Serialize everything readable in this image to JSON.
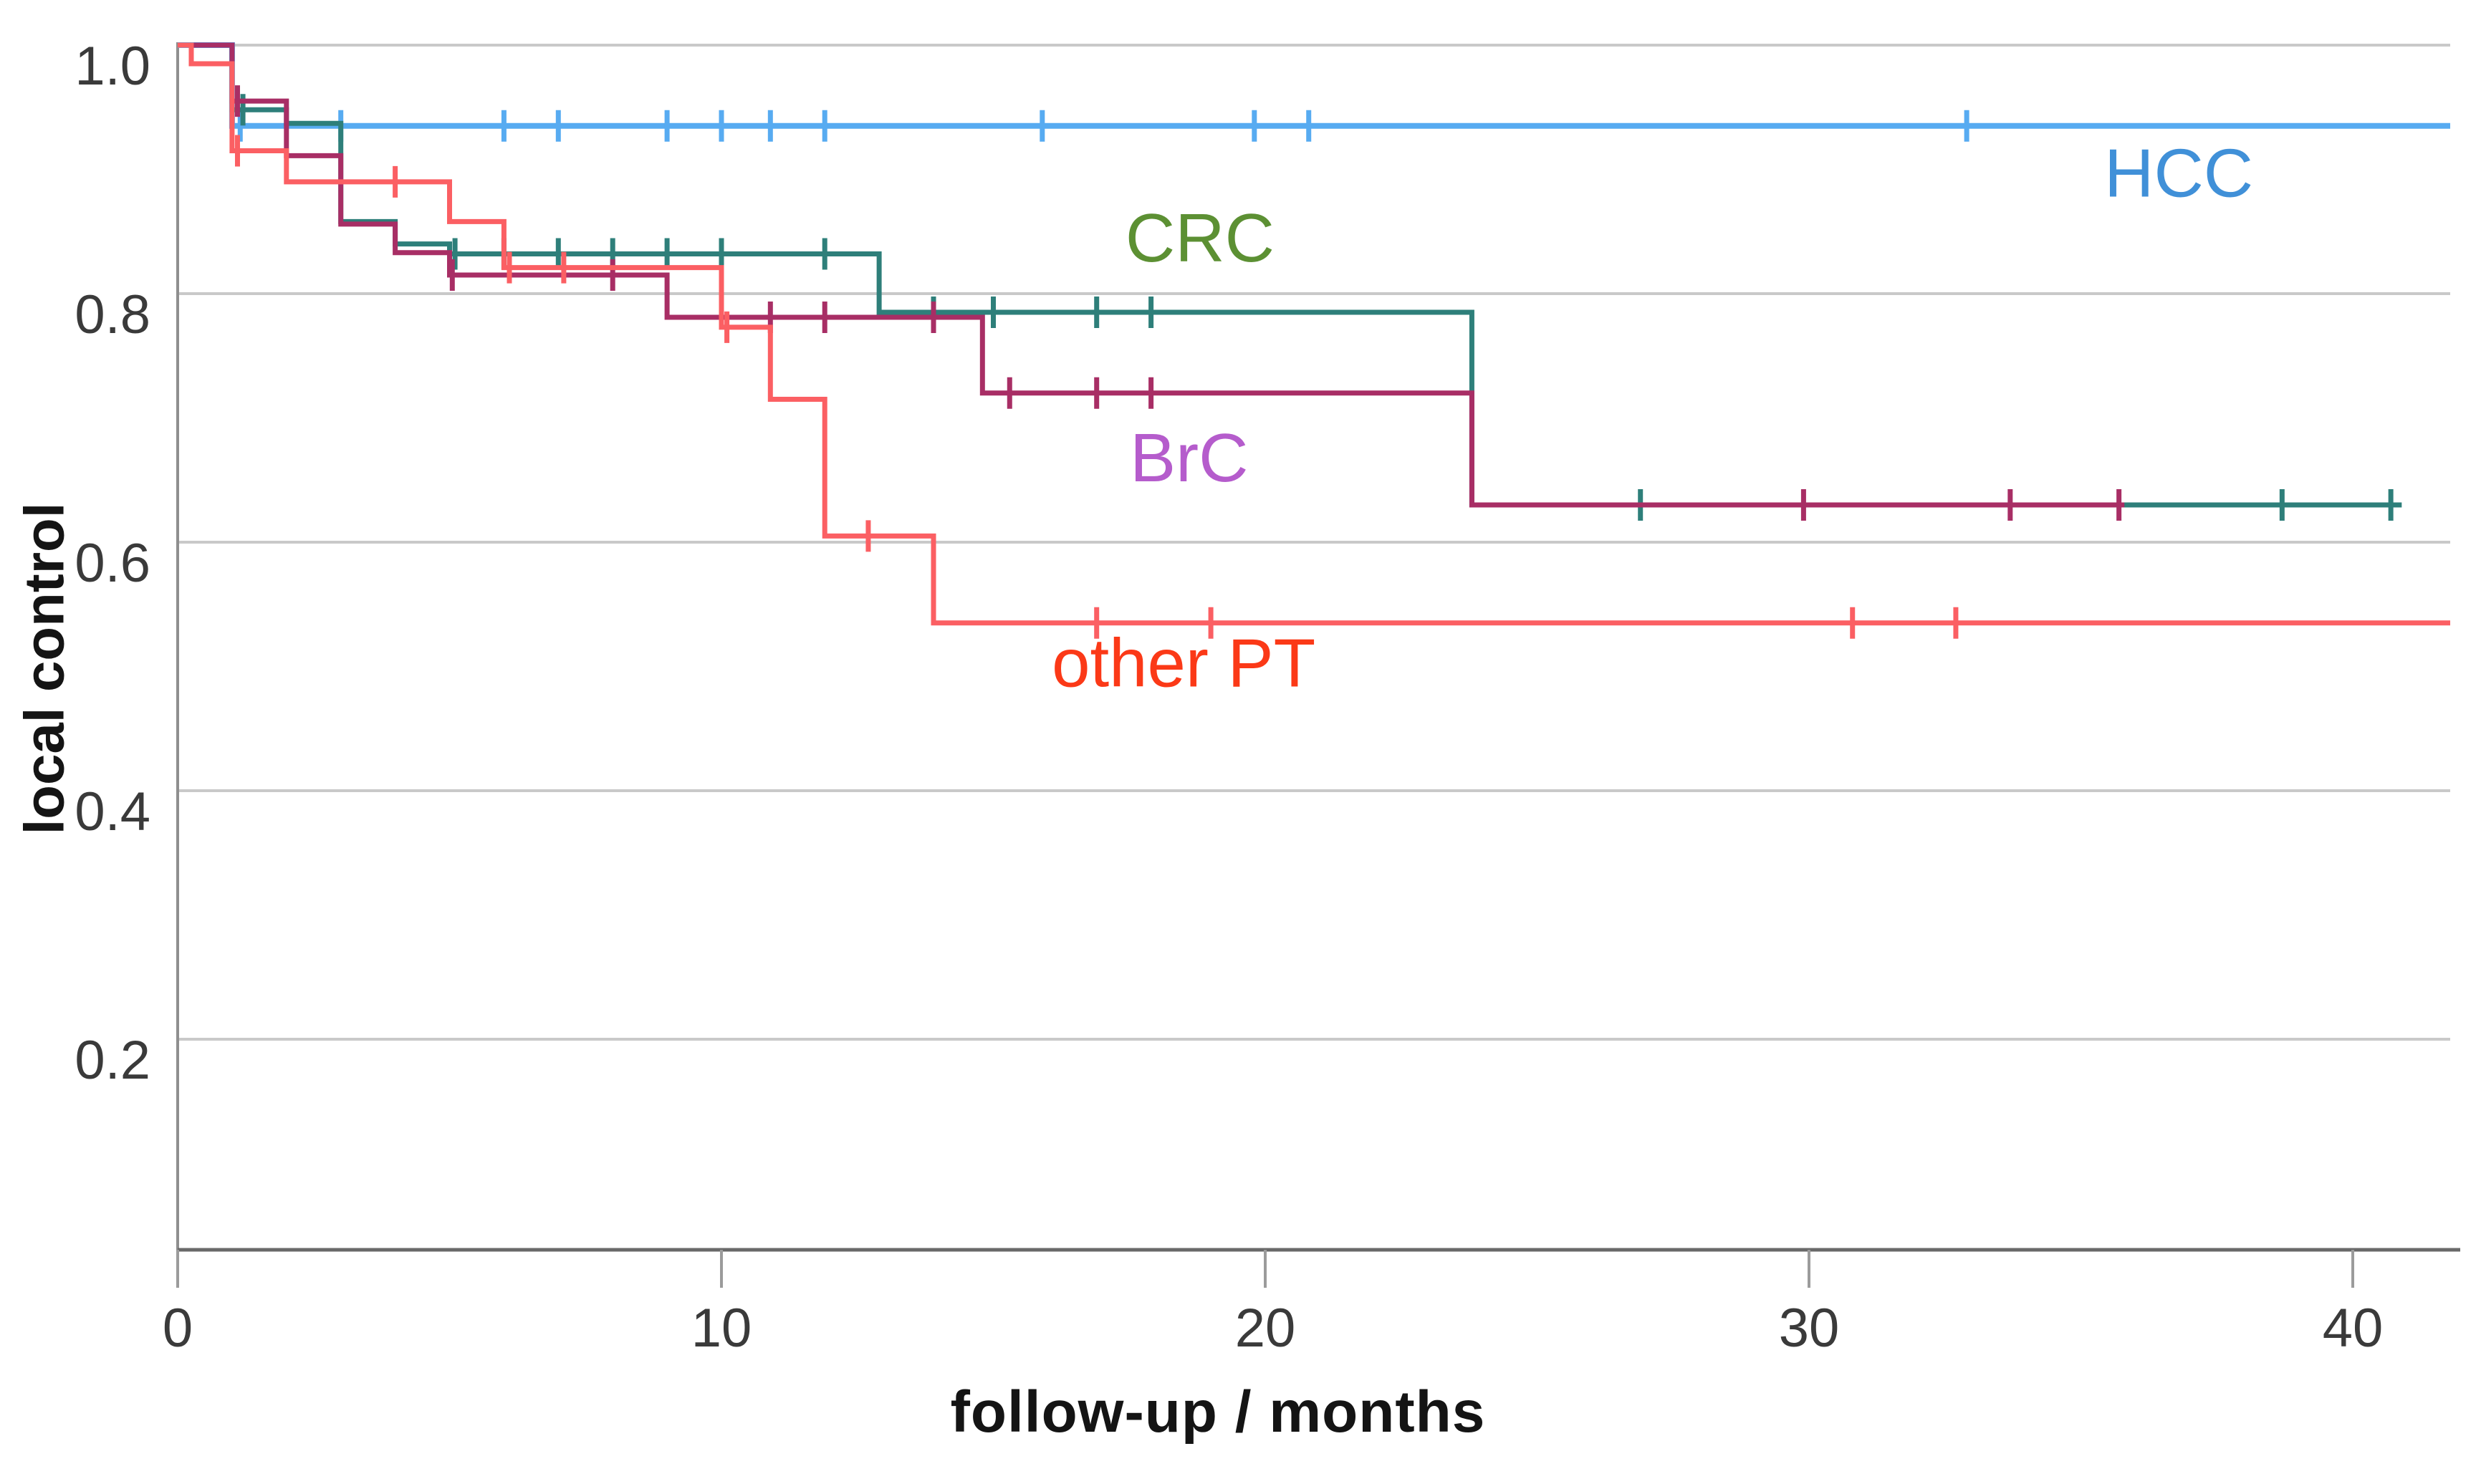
{
  "figure": {
    "x_axis_title": "follow-up / months",
    "y_axis_title": "local control"
  },
  "chart_data": {
    "type": "line",
    "subtype": "kaplan-meier-step-curves",
    "title": "",
    "xlabel": "follow-up / months",
    "ylabel": "local control",
    "xlim": [
      0,
      41.8
    ],
    "ylim": [
      0.03,
      1.02
    ],
    "x_ticks": [
      "0",
      "10",
      "20",
      "30",
      "40"
    ],
    "x_tick_values": [
      0,
      10,
      20,
      30,
      40
    ],
    "y_ticks": [
      "1.0",
      "0.8",
      "0.6",
      "0.4",
      "0.2"
    ],
    "y_tick_values": [
      1.0,
      0.8,
      0.6,
      0.4,
      0.2
    ],
    "grid": "horizontal",
    "legend_position": "inline-labels",
    "colors": {
      "grid_line": "#c9c9c9",
      "y_axis_line": "#8f8f8f",
      "x_axis_line": "#696969",
      "tick_mark": "#9b9b9b",
      "tick_label": "#3a3a3a"
    },
    "series": [
      {
        "name": "HCC",
        "label": {
          "text": "HCC",
          "x": 36.8,
          "y": 0.897
        },
        "line_color": "#57abf1",
        "label_color": "#4090d8",
        "end_t": 41.8,
        "steps": [
          [
            0,
            1.0
          ],
          [
            1,
            0.935
          ]
        ],
        "censors": [
          [
            1.15,
            0.935
          ],
          [
            3,
            0.935
          ],
          [
            6,
            0.935
          ],
          [
            7,
            0.935
          ],
          [
            9,
            0.935
          ],
          [
            10,
            0.935
          ],
          [
            10.9,
            0.935
          ],
          [
            11.9,
            0.935
          ],
          [
            15.9,
            0.935
          ],
          [
            19.8,
            0.935
          ],
          [
            20.8,
            0.935
          ],
          [
            32.9,
            0.935
          ]
        ]
      },
      {
        "name": "CRC",
        "label": {
          "text": "CRC",
          "x": 18.8,
          "y": 0.845
        },
        "line_color": "#2e7f7a",
        "label_color": "#5c9033",
        "end_t": 40.9,
        "steps": [
          [
            0,
            1.0
          ],
          [
            1,
            0.948
          ],
          [
            2,
            0.937
          ],
          [
            3,
            0.858
          ],
          [
            4,
            0.84
          ],
          [
            5,
            0.832
          ],
          [
            12.9,
            0.785
          ],
          [
            23.8,
            0.63
          ]
        ],
        "censors": [
          [
            1.2,
            0.948
          ],
          [
            5.1,
            0.832
          ],
          [
            6,
            0.832
          ],
          [
            7,
            0.832
          ],
          [
            8,
            0.832
          ],
          [
            9,
            0.832
          ],
          [
            10,
            0.832
          ],
          [
            11.9,
            0.832
          ],
          [
            13.9,
            0.785
          ],
          [
            15,
            0.785
          ],
          [
            16.9,
            0.785
          ],
          [
            17.9,
            0.785
          ],
          [
            26.9,
            0.63
          ],
          [
            38.7,
            0.63
          ],
          [
            40.7,
            0.63
          ]
        ]
      },
      {
        "name": "BrC",
        "label": {
          "text": "BrC",
          "x": 18.6,
          "y": 0.668
        },
        "line_color": "#a82e65",
        "label_color": "#b55ccc",
        "end_t": 35.8,
        "steps": [
          [
            0,
            1.0
          ],
          [
            1,
            0.955
          ],
          [
            2,
            0.911
          ],
          [
            3,
            0.856
          ],
          [
            4,
            0.833
          ],
          [
            5,
            0.815
          ],
          [
            9,
            0.781
          ],
          [
            14.8,
            0.72
          ],
          [
            23.8,
            0.63
          ]
        ],
        "censors": [
          [
            1.1,
            0.955
          ],
          [
            5.05,
            0.815
          ],
          [
            8,
            0.815
          ],
          [
            10.9,
            0.781
          ],
          [
            11.9,
            0.781
          ],
          [
            13.9,
            0.781
          ],
          [
            15.3,
            0.72
          ],
          [
            16.9,
            0.72
          ],
          [
            17.9,
            0.72
          ],
          [
            29.9,
            0.63
          ],
          [
            33.7,
            0.63
          ],
          [
            35.7,
            0.63
          ]
        ]
      },
      {
        "name": "other PT",
        "label": {
          "text": "other PT",
          "x": 18.5,
          "y": 0.503
        },
        "line_color": "#fb5f63",
        "label_color": "#fb3917",
        "end_t": 41.8,
        "steps": [
          [
            0,
            1.0
          ],
          [
            0.25,
            0.985
          ],
          [
            1,
            0.915
          ],
          [
            2,
            0.89
          ],
          [
            5,
            0.858
          ],
          [
            6,
            0.821
          ],
          [
            10,
            0.773
          ],
          [
            10.9,
            0.715
          ],
          [
            11.9,
            0.605
          ],
          [
            13.9,
            0.535
          ]
        ],
        "censors": [
          [
            1.1,
            0.915
          ],
          [
            4,
            0.89
          ],
          [
            6.1,
            0.821
          ],
          [
            7.1,
            0.821
          ],
          [
            10.1,
            0.773
          ],
          [
            12.7,
            0.605
          ],
          [
            16.9,
            0.535
          ],
          [
            19,
            0.535
          ],
          [
            30.8,
            0.535
          ],
          [
            32.7,
            0.535
          ]
        ]
      }
    ]
  }
}
